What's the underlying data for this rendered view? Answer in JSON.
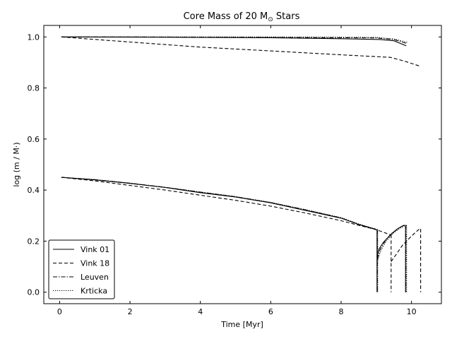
{
  "chart_data": {
    "type": "line",
    "title_main": "Core Mass of 20 M",
    "title_symbol": "⊙",
    "title_end": " Stars",
    "xlabel": "Time [Myr]",
    "ylabel": "log (m / M⋅)",
    "xlim": [
      -0.45,
      10.85
    ],
    "ylim": [
      -0.045,
      1.045
    ],
    "xticks": [
      0,
      2,
      4,
      6,
      8,
      10
    ],
    "yticks": [
      0.0,
      0.2,
      0.4,
      0.6,
      0.8,
      1.0
    ],
    "xtick_labels": [
      "0",
      "2",
      "4",
      "6",
      "8",
      "10"
    ],
    "ytick_labels": [
      "0.0",
      "0.2",
      "0.4",
      "0.6",
      "0.8",
      "1.0"
    ],
    "grid": false,
    "legend_position": "lower-left",
    "series": [
      {
        "name": "Vink 01",
        "style": "solid",
        "upper": {
          "x": [
            0.05,
            2,
            4,
            6,
            8,
            9.1,
            9.5,
            9.85
          ],
          "y": [
            1.0,
            0.999,
            0.998,
            0.997,
            0.993,
            0.99,
            0.985,
            0.965
          ]
        },
        "lower": {
          "x": [
            0.05,
            1,
            2,
            3,
            4,
            5,
            6,
            7,
            8,
            8.5,
            9.0
          ],
          "y": [
            0.45,
            0.44,
            0.426,
            0.41,
            0.39,
            0.373,
            0.35,
            0.32,
            0.29,
            0.265,
            0.245
          ]
        },
        "loops": [
          {
            "x": [
              9.02,
              9.08,
              9.2,
              9.4,
              9.6,
              9.75,
              9.82
            ],
            "y": [
              0.14,
              0.17,
              0.195,
              0.225,
              0.248,
              0.26,
              0.262
            ]
          }
        ],
        "drops": [
          {
            "x": 9.02,
            "top": 0.245,
            "bottom": 0.0
          },
          {
            "x": 9.83,
            "top": 0.26,
            "bottom": 0.0
          }
        ]
      },
      {
        "name": "Vink 18",
        "style": "dashed",
        "upper": {
          "x": [
            0.05,
            2,
            4,
            6,
            8,
            9.4,
            9.8,
            10.25
          ],
          "y": [
            1.0,
            0.98,
            0.96,
            0.945,
            0.93,
            0.92,
            0.905,
            0.885
          ]
        },
        "lower": {
          "x": [
            0.05,
            1,
            2,
            3,
            4,
            5,
            6,
            7,
            8,
            8.5,
            9.0,
            9.4
          ],
          "y": [
            0.45,
            0.436,
            0.418,
            0.4,
            0.38,
            0.36,
            0.337,
            0.31,
            0.28,
            0.262,
            0.245,
            0.225
          ]
        },
        "loops": [
          {
            "x": [
              9.42,
              9.55,
              9.75,
              10.0,
              10.2,
              10.25
            ],
            "y": [
              0.12,
              0.145,
              0.185,
              0.22,
              0.245,
              0.248
            ]
          }
        ],
        "drops": [
          {
            "x": 9.42,
            "top": 0.225,
            "bottom": 0.0
          },
          {
            "x": 10.26,
            "top": 0.248,
            "bottom": 0.0
          }
        ]
      },
      {
        "name": "Leuven",
        "style": "dashdot",
        "upper": {
          "x": [
            0.05,
            2,
            4,
            6,
            8,
            9.0,
            9.5,
            9.85
          ],
          "y": [
            1.0,
            1.0,
            0.999,
            0.998,
            0.997,
            0.996,
            0.99,
            0.975
          ]
        },
        "lower": {
          "x": [
            0.05,
            1,
            2,
            3,
            4,
            5,
            6,
            7,
            8,
            8.5,
            9.0
          ],
          "y": [
            0.45,
            0.441,
            0.427,
            0.411,
            0.392,
            0.374,
            0.351,
            0.322,
            0.291,
            0.266,
            0.246
          ]
        },
        "loops": [
          {
            "x": [
              9.03,
              9.1,
              9.25,
              9.45,
              9.65,
              9.78,
              9.84
            ],
            "y": [
              0.13,
              0.165,
              0.2,
              0.232,
              0.252,
              0.262,
              0.263
            ]
          }
        ],
        "drops": [
          {
            "x": 9.03,
            "top": 0.246,
            "bottom": 0.0
          },
          {
            "x": 9.84,
            "top": 0.262,
            "bottom": 0.0
          }
        ]
      },
      {
        "name": "Krticka",
        "style": "dotted",
        "upper": {
          "x": [
            0.05,
            2,
            4,
            6,
            8,
            9.0,
            9.5,
            9.9
          ],
          "y": [
            1.0,
            1.0,
            1.0,
            1.0,
            0.999,
            0.998,
            0.992,
            0.978
          ]
        },
        "lower": {
          "x": [
            0.05,
            1,
            2,
            3,
            4,
            5,
            6,
            7,
            8,
            8.5,
            9.0
          ],
          "y": [
            0.45,
            0.441,
            0.427,
            0.411,
            0.392,
            0.374,
            0.352,
            0.323,
            0.292,
            0.267,
            0.247
          ]
        },
        "loops": [
          {
            "x": [
              9.04,
              9.12,
              9.27,
              9.47,
              9.67,
              9.8,
              9.86
            ],
            "y": [
              0.125,
              0.16,
              0.198,
              0.23,
              0.25,
              0.26,
              0.262
            ]
          }
        ],
        "drops": [
          {
            "x": 9.04,
            "top": 0.247,
            "bottom": 0.0
          },
          {
            "x": 9.86,
            "top": 0.262,
            "bottom": 0.0
          }
        ]
      }
    ]
  }
}
